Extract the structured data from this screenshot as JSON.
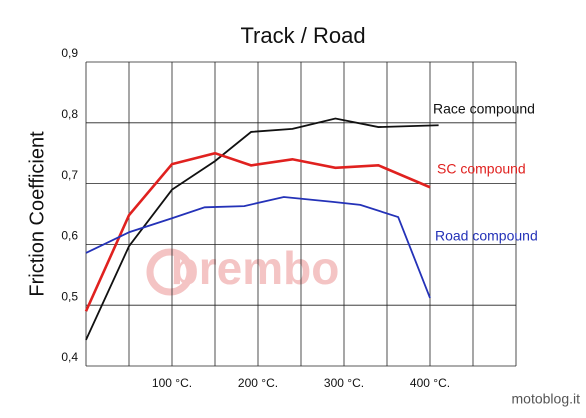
{
  "chart_data": {
    "type": "line",
    "title": "Track / Road",
    "y_label": "Friction Coefficient",
    "watermark": "brembo",
    "credit": "motoblog.it",
    "xlim": [
      0,
      500
    ],
    "ylim": [
      0.4,
      0.9
    ],
    "xticks": [
      {
        "value": 100,
        "label": "100 °C."
      },
      {
        "value": 200,
        "label": "200 °C."
      },
      {
        "value": 300,
        "label": "300 °C."
      },
      {
        "value": 400,
        "label": "400 °C."
      }
    ],
    "yticks": [
      {
        "value": 0.4,
        "label": "0,4"
      },
      {
        "value": 0.5,
        "label": "0,5"
      },
      {
        "value": 0.6,
        "label": "0,6"
      },
      {
        "value": 0.7,
        "label": "0,7"
      },
      {
        "value": 0.8,
        "label": "0,8"
      },
      {
        "value": 0.9,
        "label": "0,9"
      }
    ],
    "grid": true,
    "series": [
      {
        "name": "Race compound",
        "color": "#111111",
        "x": [
          0,
          50,
          100,
          150,
          192,
          240,
          290,
          340,
          410
        ],
        "values": [
          0.443,
          0.597,
          0.69,
          0.737,
          0.785,
          0.79,
          0.807,
          0.793,
          0.796
        ]
      },
      {
        "name": "SC compound",
        "color": "#e0211f",
        "x": [
          0,
          50,
          100,
          150,
          192,
          240,
          290,
          340,
          400
        ],
        "values": [
          0.49,
          0.648,
          0.732,
          0.75,
          0.73,
          0.74,
          0.726,
          0.73,
          0.694
        ]
      },
      {
        "name": "Road compound",
        "color": "#2432b8",
        "x": [
          0,
          50,
          100,
          138,
          184,
          230,
          287,
          319,
          363,
          400
        ],
        "values": [
          0.586,
          0.62,
          0.643,
          0.661,
          0.663,
          0.678,
          0.67,
          0.665,
          0.645,
          0.512
        ]
      }
    ]
  }
}
